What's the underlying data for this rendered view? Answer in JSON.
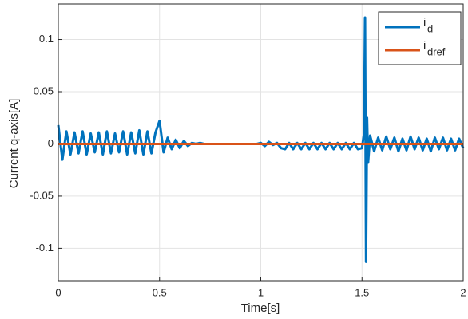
{
  "chart_data": {
    "type": "line",
    "xlabel": "Time[s]",
    "ylabel": "Current q-axis[A]",
    "xlim": [
      0,
      2
    ],
    "xticks": [
      0,
      0.5,
      1,
      1.5,
      2
    ],
    "ylim": [
      -0.131,
      0.134
    ],
    "yticks": [
      -0.1,
      -0.05,
      0,
      0.05,
      0.1
    ],
    "grid": true,
    "legend_position": "upper right",
    "series": [
      {
        "name": "i",
        "subscript": "d",
        "color": "#0072BD",
        "x": [
          0,
          0.02,
          0.04,
          0.06,
          0.08,
          0.1,
          0.12,
          0.14,
          0.16,
          0.18,
          0.2,
          0.22,
          0.24,
          0.26,
          0.28,
          0.3,
          0.32,
          0.34,
          0.36,
          0.38,
          0.4,
          0.42,
          0.44,
          0.46,
          0.48,
          0.5,
          0.52,
          0.54,
          0.56,
          0.58,
          0.6,
          0.62,
          0.64,
          0.66,
          0.68,
          0.7,
          0.72,
          0.74,
          0.76,
          0.78,
          0.8,
          0.82,
          0.84,
          0.86,
          0.88,
          0.9,
          0.92,
          0.94,
          0.96,
          0.98,
          1,
          1.02,
          1.04,
          1.06,
          1.08,
          1.1,
          1.12,
          1.14,
          1.16,
          1.18,
          1.2,
          1.22,
          1.24,
          1.26,
          1.28,
          1.3,
          1.32,
          1.34,
          1.36,
          1.38,
          1.4,
          1.42,
          1.44,
          1.46,
          1.48,
          1.5,
          1.51,
          1.515,
          1.52,
          1.525,
          1.53,
          1.54,
          1.56,
          1.58,
          1.6,
          1.62,
          1.64,
          1.66,
          1.68,
          1.7,
          1.72,
          1.74,
          1.76,
          1.78,
          1.8,
          1.82,
          1.84,
          1.86,
          1.88,
          1.9,
          1.92,
          1.94,
          1.96,
          1.98,
          2
        ],
        "values": [
          0.018,
          -0.015,
          0.012,
          -0.01,
          0.011,
          -0.009,
          0.012,
          -0.01,
          0.01,
          -0.008,
          0.011,
          -0.01,
          0.012,
          -0.009,
          0.01,
          -0.008,
          0.012,
          -0.01,
          0.011,
          -0.009,
          0.013,
          -0.01,
          0.012,
          -0.009,
          0.011,
          0.022,
          -0.008,
          0.006,
          -0.005,
          0.004,
          -0.004,
          0.003,
          -0.002,
          0.001,
          0,
          0.001,
          0,
          0,
          0,
          0,
          0,
          0,
          0,
          0,
          0,
          0,
          0,
          0,
          0,
          0,
          0.001,
          -0.002,
          0.002,
          -0.001,
          0.001,
          -0.004,
          -0.005,
          0.001,
          -0.005,
          0.001,
          -0.005,
          0.001,
          -0.005,
          0.001,
          -0.005,
          0.001,
          -0.005,
          0.001,
          -0.005,
          0.001,
          -0.005,
          0.001,
          -0.005,
          0.001,
          -0.005,
          -0.004,
          0.01,
          0.121,
          -0.113,
          0.025,
          -0.018,
          0.008,
          -0.007,
          0.006,
          -0.006,
          0.007,
          -0.005,
          0.006,
          -0.007,
          0.005,
          -0.006,
          0.007,
          -0.005,
          0.006,
          -0.006,
          0.005,
          -0.007,
          0.006,
          -0.005,
          0.006,
          -0.006,
          0.005,
          -0.006,
          0.005,
          -0.004
        ]
      },
      {
        "name": "i",
        "subscript": "dref",
        "color": "#D95319",
        "x": [
          0,
          2
        ],
        "values": [
          0,
          0
        ]
      }
    ]
  }
}
